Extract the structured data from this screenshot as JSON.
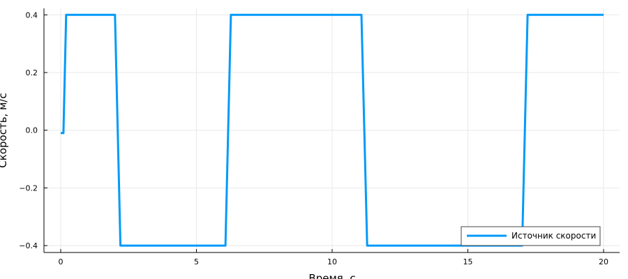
{
  "chart_data": {
    "type": "line",
    "title": "",
    "xlabel": "Время, с",
    "ylabel": "Скорость, м/с",
    "xlim": [
      -0.6,
      20.6
    ],
    "ylim": [
      -0.42,
      0.425
    ],
    "xticks": [
      0,
      5,
      10,
      15,
      20
    ],
    "xtick_labels": [
      "0",
      "5",
      "10",
      "15",
      "20"
    ],
    "yticks": [
      -0.4,
      -0.2,
      0.0,
      0.2,
      0.4
    ],
    "ytick_labels": [
      "−0.4",
      "−0.2",
      "0.0",
      "0.2",
      "0.4"
    ],
    "grid": true,
    "legend_position": "bottom-right",
    "series": [
      {
        "name": "Источник скорости",
        "color": "#009af9",
        "x": [
          0,
          0.1,
          0.2,
          2.0,
          2.2,
          6.07,
          6.27,
          11.08,
          11.29,
          17.0,
          17.2,
          20
        ],
        "y": [
          -0.01,
          -0.01,
          0.4,
          0.4,
          -0.4,
          -0.4,
          0.4,
          0.4,
          -0.4,
          -0.4,
          0.4,
          0.4
        ]
      }
    ]
  }
}
